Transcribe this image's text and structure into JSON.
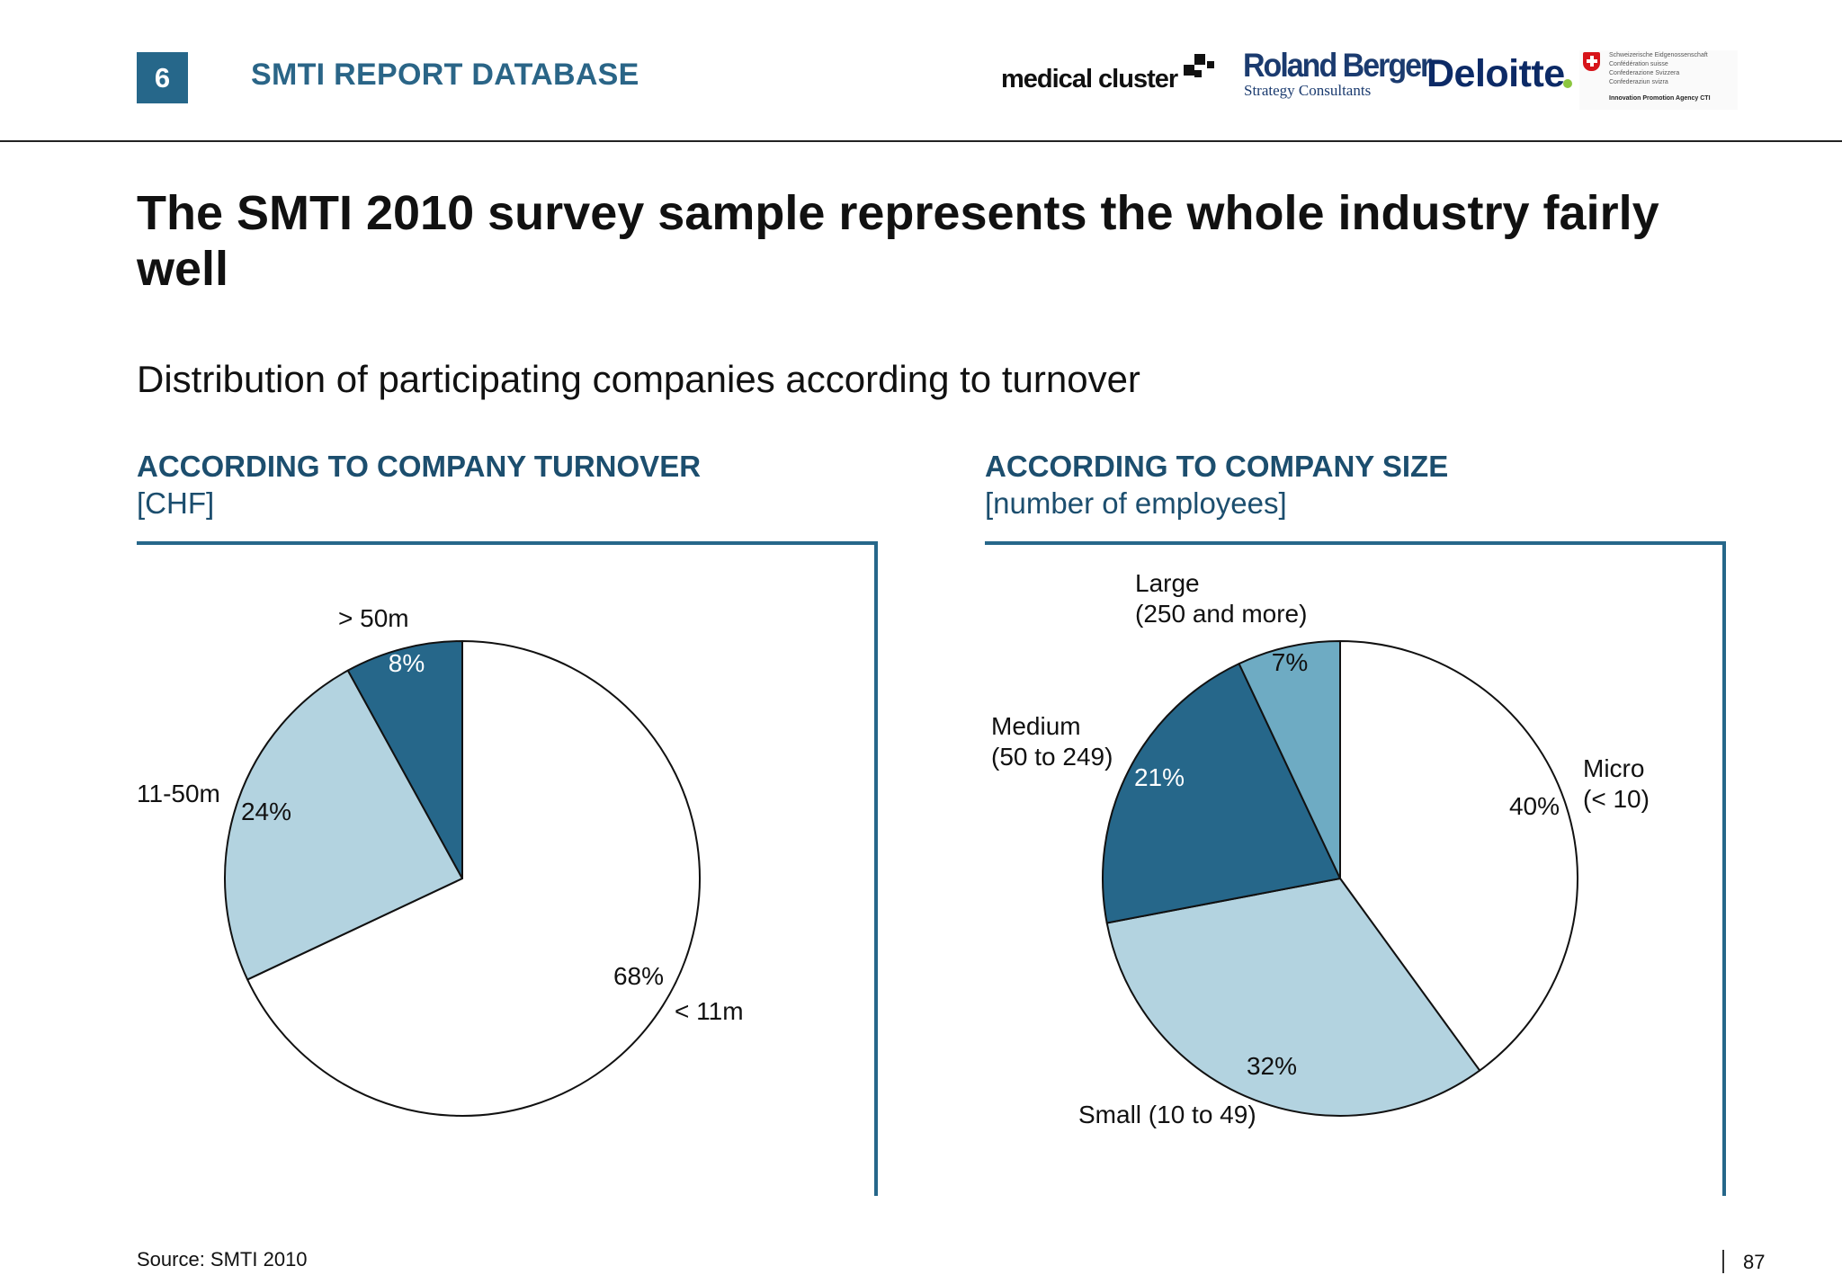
{
  "header": {
    "chapter_number": "6",
    "section_title": "SMTI REPORT DATABASE",
    "logos": {
      "medical_cluster": "medical cluster",
      "roland_berger_1": "Roland Berger",
      "roland_berger_2": "Strategy Consultants",
      "deloitte": "Deloitte",
      "swiss_lines": [
        "Schweizerische Eidgenossenschaft",
        "Confédération suisse",
        "Confederazione Svizzera",
        "Confederaziun svizra"
      ],
      "swiss_agency": "Innovation Promotion Agency CTI"
    }
  },
  "headline": "The SMTI 2010 survey sample represents the whole industry fairly well",
  "subtitle": "Distribution of participating companies according to turnover",
  "colors": {
    "accent": "#26678a",
    "dark_blue": "#26678a",
    "mid_blue": "#6eabc3",
    "light_blue": "#b3d3e0",
    "white": "#ffffff"
  },
  "chart_data": [
    {
      "type": "pie",
      "title": "ACCORDING TO COMPANY TURNOVER",
      "unit": "[CHF]",
      "start_angle_deg": 0,
      "direction": "clockwise",
      "slices": [
        {
          "label": "< 11m",
          "value": 68,
          "value_label": "68%",
          "color": "#ffffff",
          "label_color": "#111111"
        },
        {
          "label": "11-50m",
          "value": 24,
          "value_label": "24%",
          "color": "#b3d3e0",
          "label_color": "#111111"
        },
        {
          "label": "> 50m",
          "value": 8,
          "value_label": "8%",
          "color": "#26678a",
          "label_color": "#ffffff"
        }
      ]
    },
    {
      "type": "pie",
      "title": "ACCORDING TO COMPANY SIZE",
      "unit": "[number of employees]",
      "start_angle_deg": 0,
      "direction": "clockwise",
      "slices": [
        {
          "label": "Micro\n(< 10)",
          "value": 40,
          "value_label": "40%",
          "color": "#ffffff",
          "label_color": "#111111"
        },
        {
          "label": "Small (10 to 49)",
          "value": 32,
          "value_label": "32%",
          "color": "#b3d3e0",
          "label_color": "#111111"
        },
        {
          "label": "Medium\n(50 to 249)",
          "value": 21,
          "value_label": "21%",
          "color": "#26678a",
          "label_color": "#ffffff"
        },
        {
          "label": "Large\n(250 and more)",
          "value": 7,
          "value_label": "7%",
          "color": "#6eabc3",
          "label_color": "#111111"
        }
      ]
    }
  ],
  "footer": {
    "source": "Source:  SMTI 2010",
    "page_number": "87"
  }
}
